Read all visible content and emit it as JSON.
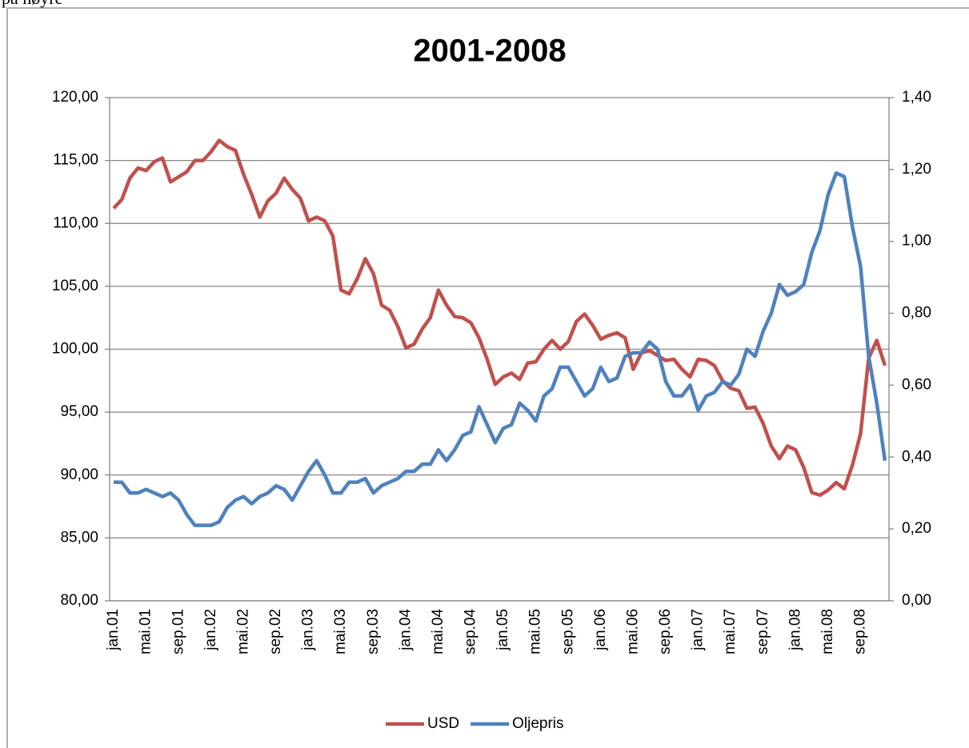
{
  "note_text": "på høyre",
  "chart_data": {
    "type": "line",
    "title": "2001-2008",
    "categories": [
      "jan.01",
      null,
      null,
      null,
      "mai.01",
      null,
      null,
      null,
      "sep.01",
      null,
      null,
      null,
      "jan.02",
      null,
      null,
      null,
      "mai.02",
      null,
      null,
      null,
      "sep.02",
      null,
      null,
      null,
      "jan.03",
      null,
      null,
      null,
      "mai.03",
      null,
      null,
      null,
      "sep.03",
      null,
      null,
      null,
      "jan.04",
      null,
      null,
      null,
      "mai.04",
      null,
      null,
      null,
      "sep.04",
      null,
      null,
      null,
      "jan.05",
      null,
      null,
      null,
      "mai.05",
      null,
      null,
      null,
      "sep.05",
      null,
      null,
      null,
      "jan.06",
      null,
      null,
      null,
      "mai.06",
      null,
      null,
      null,
      "sep.06",
      null,
      null,
      null,
      "jan.07",
      null,
      null,
      null,
      "mai.07",
      null,
      null,
      null,
      "sep.07",
      null,
      null,
      null,
      "jan.08",
      null,
      null,
      null,
      "mai.08",
      null,
      null,
      null,
      "sep.08",
      null,
      null,
      null
    ],
    "series": [
      {
        "name": "USD",
        "color": "#c0504d",
        "axis": "y",
        "values": [
          111.2,
          111.9,
          113.6,
          114.4,
          114.2,
          114.9,
          115.2,
          113.3,
          113.7,
          114.1,
          115.0,
          115.0,
          115.7,
          116.6,
          116.1,
          115.8,
          113.9,
          112.3,
          110.5,
          111.8,
          112.4,
          113.6,
          112.7,
          112.0,
          110.2,
          110.5,
          110.2,
          109.0,
          104.7,
          104.4,
          105.6,
          107.2,
          106.0,
          103.5,
          103.1,
          101.8,
          100.1,
          100.4,
          101.6,
          102.5,
          104.7,
          103.5,
          102.6,
          102.5,
          102.1,
          100.9,
          99.2,
          97.2,
          97.8,
          98.1,
          97.6,
          98.9,
          99.0,
          100.0,
          100.7,
          100.0,
          100.6,
          102.2,
          102.8,
          101.9,
          100.8,
          101.1,
          101.3,
          100.9,
          98.4,
          99.7,
          99.9,
          99.5,
          99.1,
          99.2,
          98.4,
          97.8,
          99.2,
          99.1,
          98.7,
          97.5,
          96.9,
          96.7,
          95.3,
          95.4,
          94.1,
          92.3,
          91.3,
          92.3,
          92.0,
          90.6,
          88.6,
          88.4,
          88.8,
          89.4,
          88.9,
          90.8,
          93.3,
          99.3,
          100.7,
          98.7
        ]
      },
      {
        "name": "Oljepris",
        "color": "#4f81bd",
        "axis": "y2",
        "values": [
          0.33,
          0.33,
          0.3,
          0.3,
          0.31,
          0.3,
          0.29,
          0.3,
          0.28,
          0.24,
          0.21,
          0.21,
          0.21,
          0.22,
          0.26,
          0.28,
          0.29,
          0.27,
          0.29,
          0.3,
          0.32,
          0.31,
          0.28,
          0.32,
          0.36,
          0.39,
          0.35,
          0.3,
          0.3,
          0.33,
          0.33,
          0.34,
          0.3,
          0.32,
          0.33,
          0.34,
          0.36,
          0.36,
          0.38,
          0.38,
          0.42,
          0.39,
          0.42,
          0.46,
          0.47,
          0.54,
          0.49,
          0.44,
          0.48,
          0.49,
          0.55,
          0.53,
          0.5,
          0.57,
          0.59,
          0.65,
          0.65,
          0.61,
          0.57,
          0.59,
          0.65,
          0.61,
          0.62,
          0.68,
          0.69,
          0.69,
          0.72,
          0.7,
          0.61,
          0.57,
          0.57,
          0.6,
          0.53,
          0.57,
          0.58,
          0.61,
          0.6,
          0.63,
          0.7,
          0.68,
          0.75,
          0.8,
          0.88,
          0.85,
          0.86,
          0.88,
          0.97,
          1.03,
          1.13,
          1.19,
          1.18,
          1.04,
          0.93,
          0.68,
          0.55,
          0.39
        ]
      }
    ],
    "ylim": [
      80,
      120
    ],
    "yticks": [
      {
        "value": 80,
        "label": "80,00"
      },
      {
        "value": 85,
        "label": "85,00"
      },
      {
        "value": 90,
        "label": "90,00"
      },
      {
        "value": 95,
        "label": "95,00"
      },
      {
        "value": 100,
        "label": "100,00"
      },
      {
        "value": 105,
        "label": "105,00"
      },
      {
        "value": 110,
        "label": "110,00"
      },
      {
        "value": 115,
        "label": "115,00"
      },
      {
        "value": 120,
        "label": "120,00"
      }
    ],
    "y2lim": [
      0,
      1.4
    ],
    "y2ticks": [
      {
        "value": 0,
        "label": "0,00"
      },
      {
        "value": 0.2,
        "label": "0,20"
      },
      {
        "value": 0.4,
        "label": "0,40"
      },
      {
        "value": 0.6,
        "label": "0,60"
      },
      {
        "value": 0.8,
        "label": "0,80"
      },
      {
        "value": 1.0,
        "label": "1,00"
      },
      {
        "value": 1.2,
        "label": "1,20"
      },
      {
        "value": 1.4,
        "label": "1,40"
      }
    ],
    "grid": true,
    "legend": "bottom"
  }
}
